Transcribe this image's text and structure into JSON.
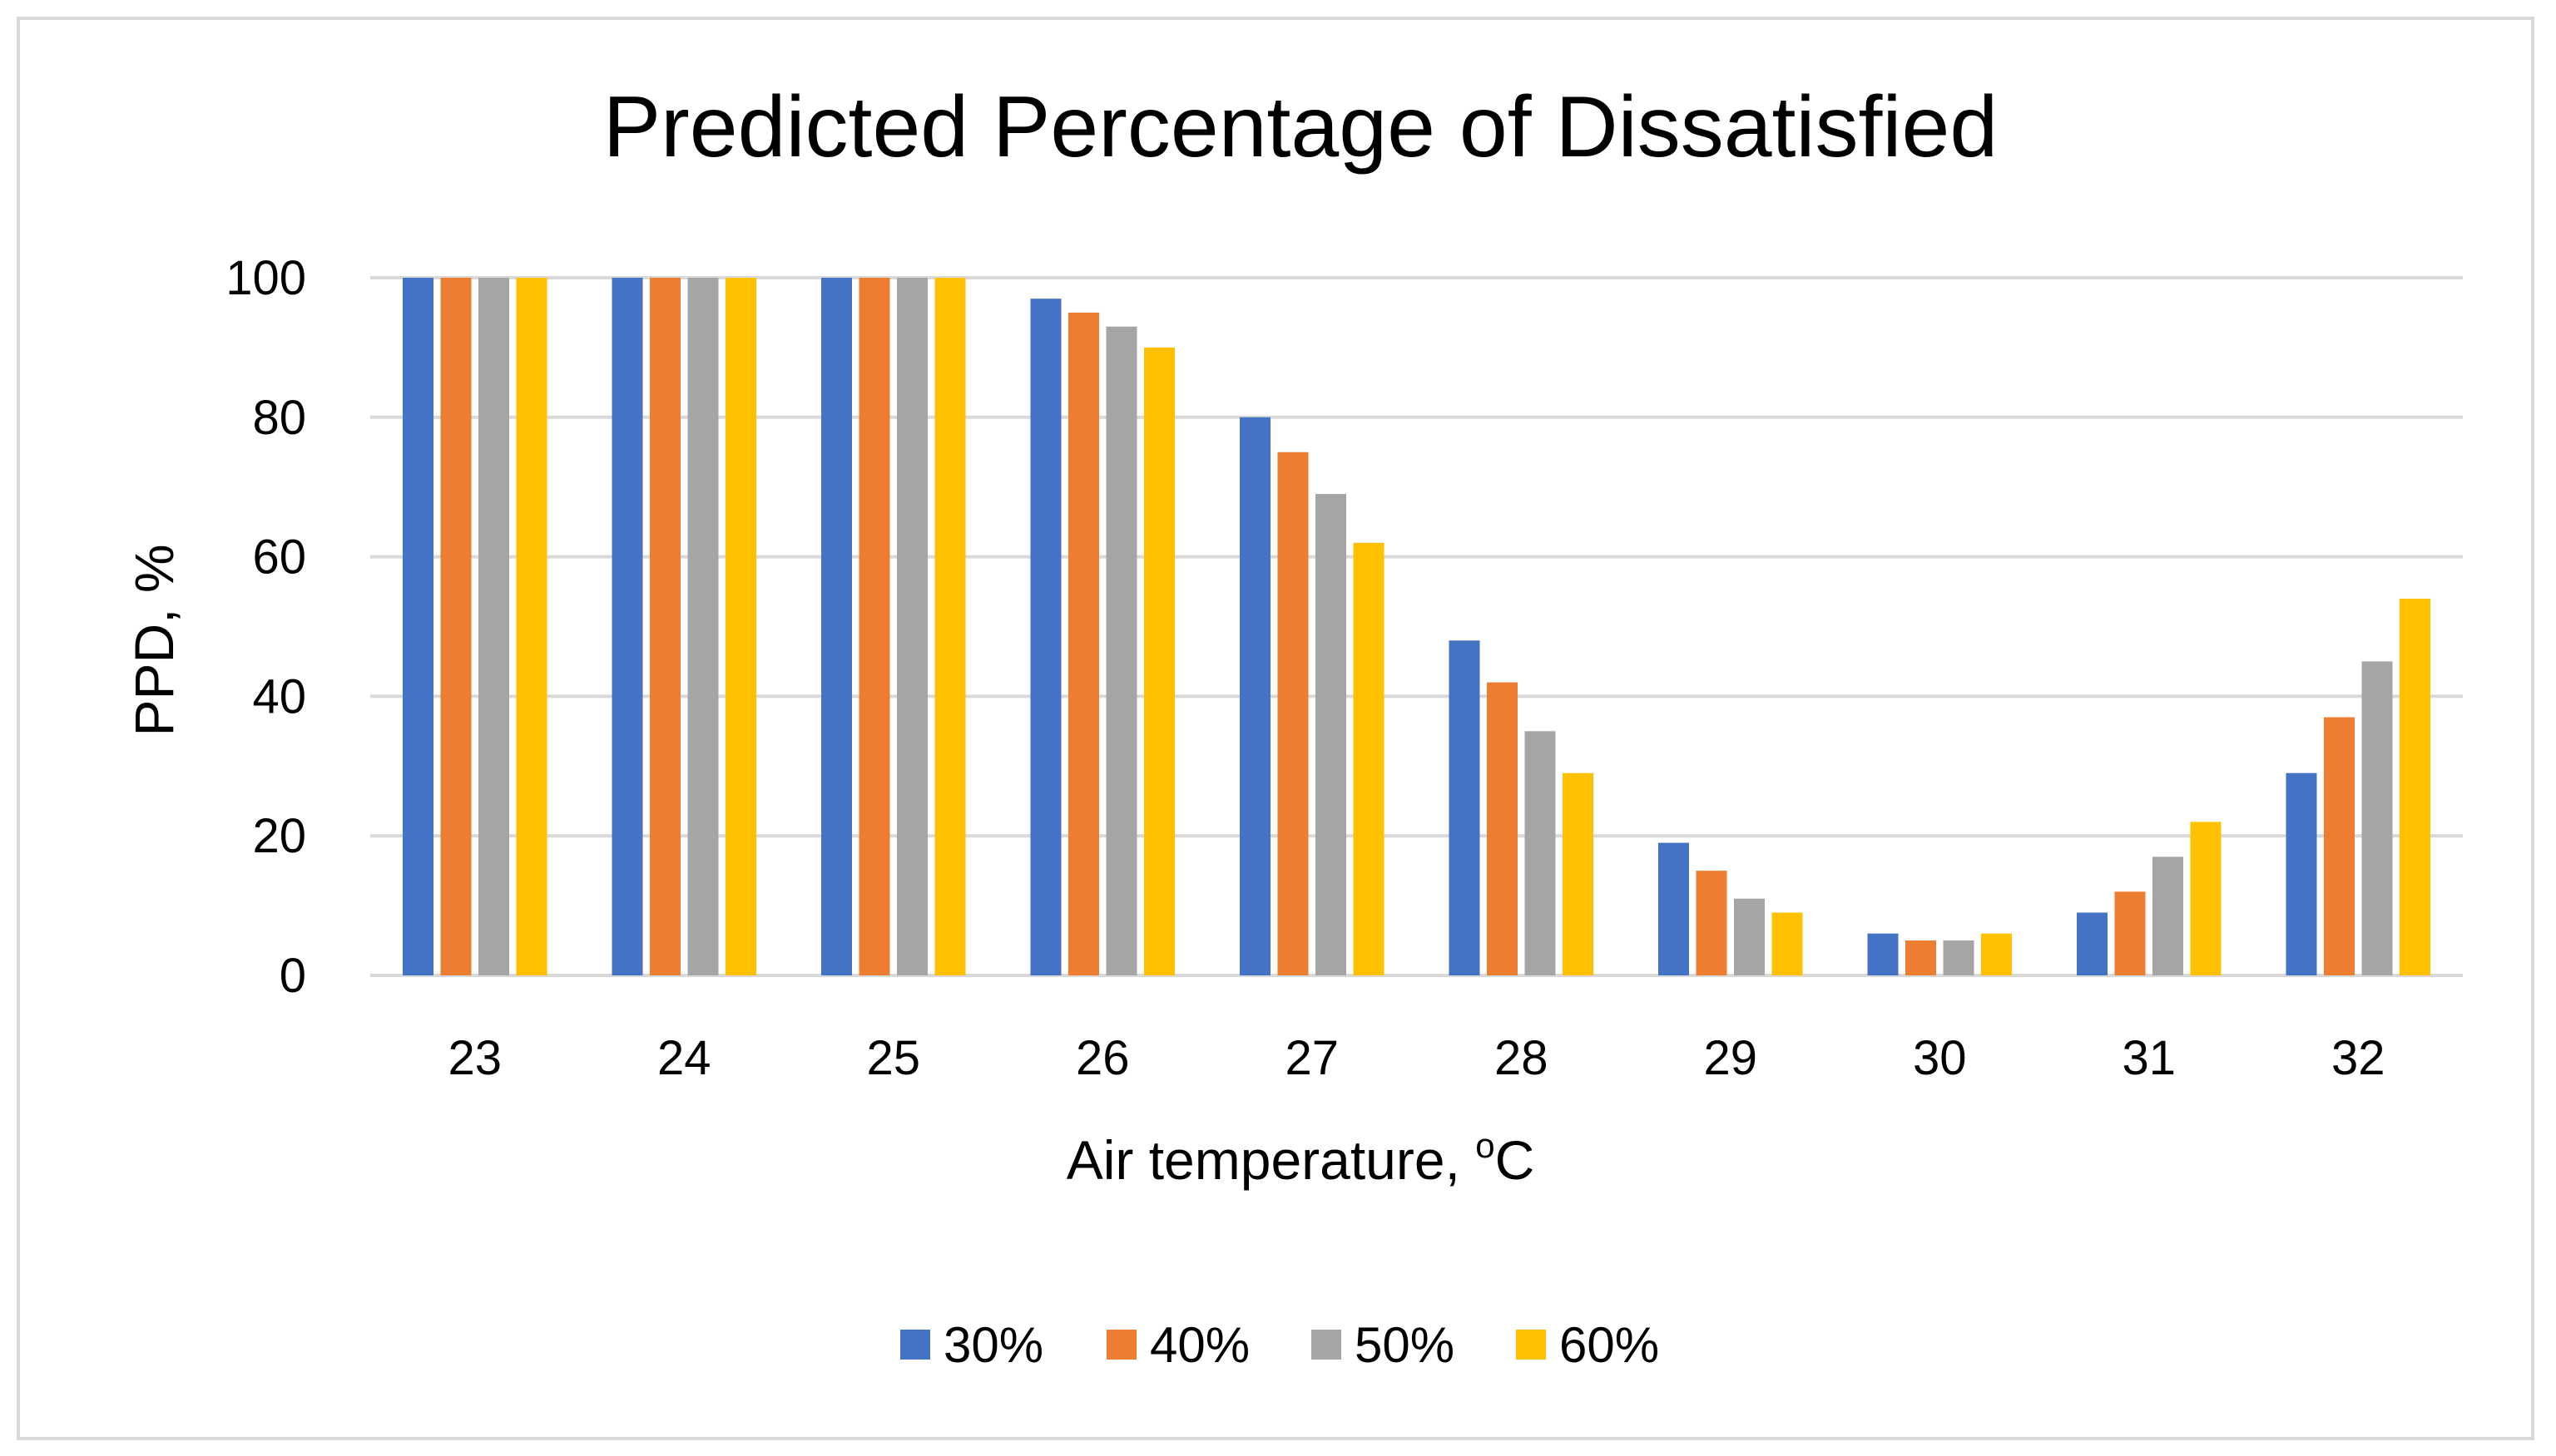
{
  "chart_data": {
    "type": "bar",
    "title": "Predicted Percentage of Dissatisfied",
    "xlabel": "Air temperature, ",
    "xlabel_superscript": "o",
    "xlabel_suffix": "C",
    "ylabel": "PPD, %",
    "ylim": [
      0,
      100
    ],
    "yticks": [
      0,
      20,
      40,
      60,
      80,
      100
    ],
    "grid": true,
    "legend_position": "bottom",
    "categories": [
      "23",
      "24",
      "25",
      "26",
      "27",
      "28",
      "29",
      "30",
      "31",
      "32"
    ],
    "series": [
      {
        "name": "30%",
        "color": "#4472c4",
        "values": [
          100,
          100,
          100,
          97,
          80,
          48,
          19,
          6,
          9,
          29
        ]
      },
      {
        "name": "40%",
        "color": "#ed7d31",
        "values": [
          100,
          100,
          100,
          95,
          75,
          42,
          15,
          5,
          12,
          37
        ]
      },
      {
        "name": "50%",
        "color": "#a5a5a5",
        "values": [
          100,
          100,
          100,
          93,
          69,
          35,
          11,
          5,
          17,
          45
        ]
      },
      {
        "name": "60%",
        "color": "#ffc000",
        "values": [
          100,
          100,
          100,
          90,
          62,
          29,
          9,
          6,
          22,
          54
        ]
      }
    ]
  },
  "colors": {
    "gridline": "#d9d9d9",
    "axis": "#d9d9d9",
    "frame": "#d9d9d9"
  }
}
